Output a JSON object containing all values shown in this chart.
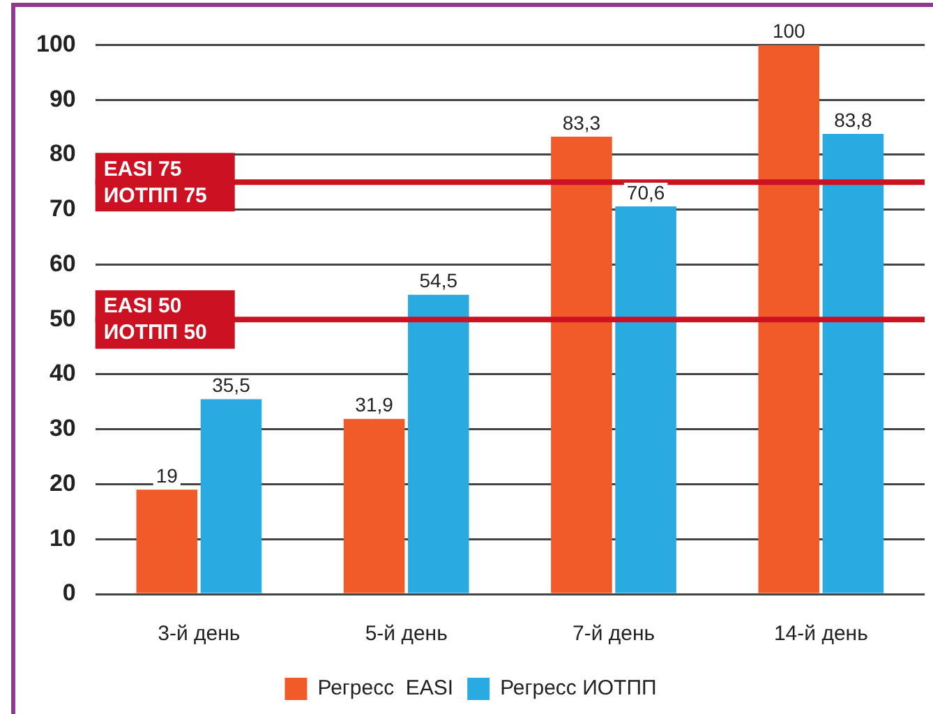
{
  "chart_data": {
    "type": "bar",
    "categories": [
      "3-й день",
      "5-й день",
      "7-й день",
      "14-й день"
    ],
    "series": [
      {
        "name": "Регресс  EASI",
        "color": "#f15a29",
        "values": [
          19,
          31.9,
          83.3,
          100
        ],
        "value_labels": [
          "19",
          "31,9",
          "83,3",
          "100"
        ]
      },
      {
        "name": "Регресс ИОТПП",
        "color": "#29abe2",
        "values": [
          35.5,
          54.5,
          70.6,
          83.8
        ],
        "value_labels": [
          "35,5",
          "54,5",
          "70,6",
          "83,8"
        ]
      }
    ],
    "ylim": [
      0,
      100
    ],
    "yticks": [
      0,
      10,
      20,
      30,
      40,
      50,
      60,
      70,
      80,
      90,
      100
    ],
    "grid": "y",
    "legend": "bottom",
    "ref_lines": [
      {
        "axis": "y",
        "value": 75,
        "label": "EASI 75\nИОТПП 75",
        "color": "#cc1122"
      },
      {
        "axis": "y",
        "value": 50,
        "label": "EASI 50\nИОТПП 50",
        "color": "#cc1122"
      }
    ]
  }
}
